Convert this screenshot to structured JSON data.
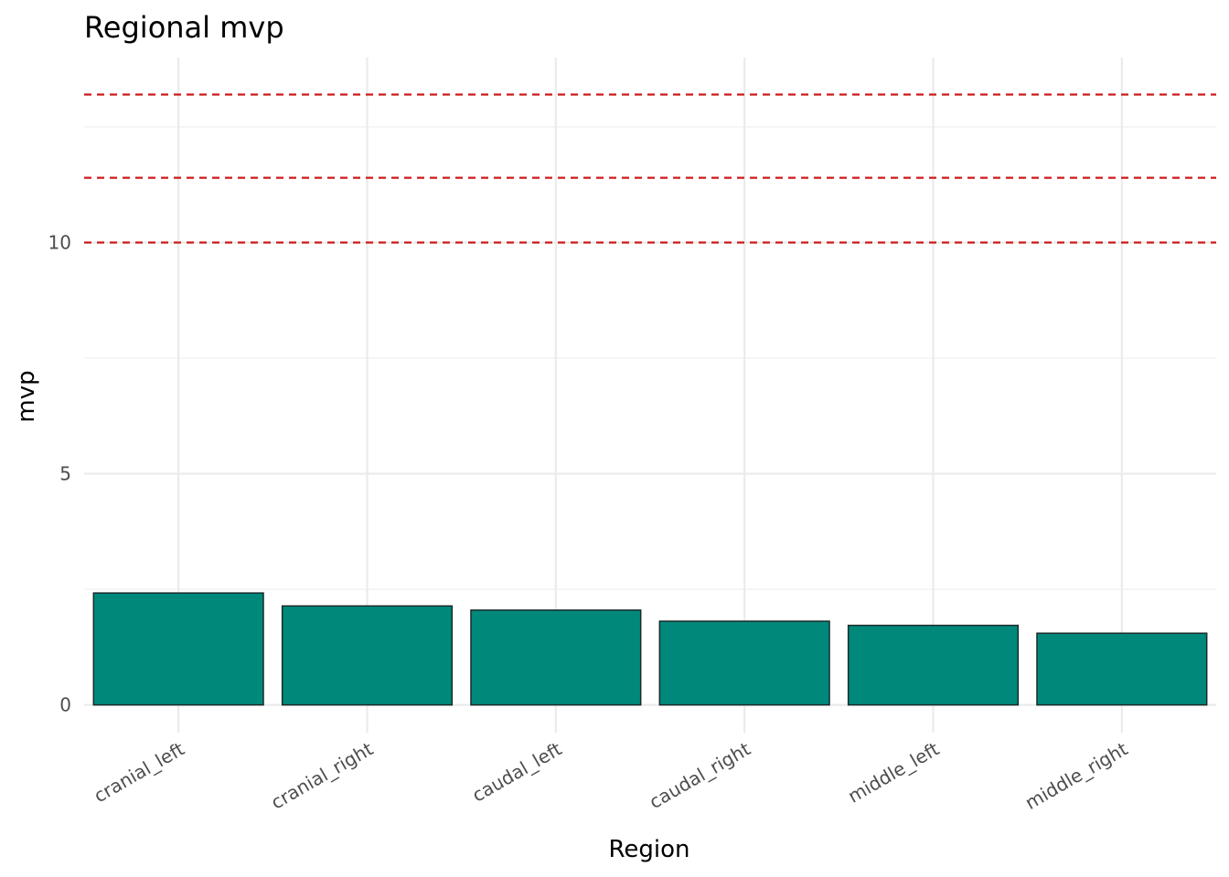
{
  "chart_data": {
    "type": "bar",
    "title": "Regional mvp",
    "xlabel": "Region",
    "ylabel": "mvp",
    "categories": [
      "cranial_left",
      "cranial_right",
      "caudal_left",
      "caudal_right",
      "middle_left",
      "middle_right"
    ],
    "values": [
      2.42,
      2.14,
      2.05,
      1.81,
      1.72,
      1.55
    ],
    "ylim": [
      -0.6,
      14.0
    ],
    "y_ticks": [
      0,
      5,
      10
    ],
    "y_tick_labels": [
      "0",
      "5",
      "10"
    ],
    "reference_lines": [
      10.0,
      11.4,
      13.2
    ],
    "grid": true,
    "colors": {
      "bar_fill": "#00897b",
      "bar_stroke": "#1a2a2a",
      "reference_line": "#cc1a1a",
      "grid_major": "#ebebeb",
      "grid_minor": "#f2f2f2"
    }
  }
}
